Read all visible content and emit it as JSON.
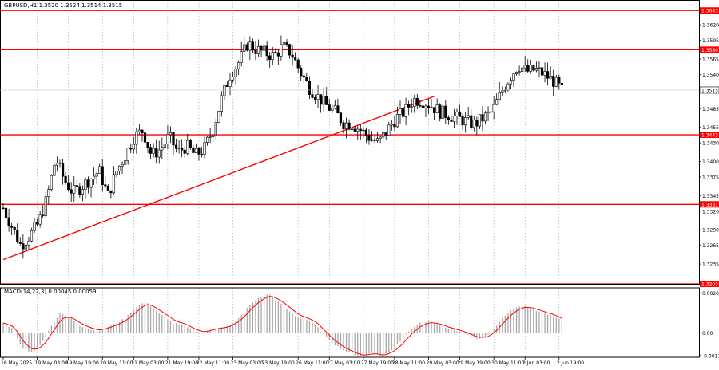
{
  "header": {
    "symbol_text": "GBPUSD,H1  1.3520 1.3524 1.3514 1.3515",
    "macd_text": "MACD(14,22,3) 0.00045 0.00059"
  },
  "colors": {
    "background": "#ffffff",
    "candle": "#000000",
    "level_line": "#ff0000",
    "trend_line": "#ff0000",
    "grid": "#9aa0a6",
    "macd_hist": "#a8a8a8",
    "macd_signal": "#ff0000",
    "current_price_bg": "#ffffff"
  },
  "chart_data": [
    {
      "type": "candlestick",
      "symbol": "GBPUSD",
      "timeframe": "H1",
      "ylim": [
        1.3203,
        1.366
      ],
      "y_ticks": [
        "1.3620",
        "1.3595",
        "1.3565",
        "1.3540",
        "1.3485",
        "1.3455",
        "1.3430",
        "1.3400",
        "1.3375",
        "1.3345",
        "1.3320",
        "1.3290",
        "1.3265",
        "1.3235"
      ],
      "x_tick_labels": [
        "16 May 2025",
        "19 May 03:00",
        "19 May 19:00",
        "20 May 11:00",
        "21 May 03:00",
        "21 May 19:00",
        "22 May 11:00",
        "23 May 03:00",
        "23 May 19:00",
        "26 May 11:00",
        "27 May 03:00",
        "27 May 19:00",
        "28 May 11:00",
        "29 May 03:00",
        "29 May 19:00",
        "30 May 11:00",
        "2 Jun 03:00",
        "2 Jun 19:00"
      ],
      "grid": "dotted vertical and horizontal",
      "current_price": "1.3515",
      "price_path": [
        1.3325,
        1.3295,
        1.3265,
        1.328,
        1.33,
        1.334,
        1.3405,
        1.337,
        1.335,
        1.336,
        1.3372,
        1.3385,
        1.3345,
        1.3385,
        1.341,
        1.344,
        1.345,
        1.341,
        1.342,
        1.344,
        1.3415,
        1.3425,
        1.341,
        1.342,
        1.345,
        1.35,
        1.354,
        1.356,
        1.359,
        1.358,
        1.3575,
        1.357,
        1.3585,
        1.3575,
        1.3545,
        1.352,
        1.3505,
        1.349,
        1.348,
        1.3462,
        1.346,
        1.345,
        1.3438,
        1.343,
        1.345,
        1.347,
        1.348,
        1.35,
        1.3498,
        1.349,
        1.348,
        1.3475,
        1.347,
        1.3465,
        1.346,
        1.347,
        1.348,
        1.351,
        1.3535,
        1.3555,
        1.3545,
        1.3548,
        1.354,
        1.353,
        1.3515
      ],
      "levels": [
        {
          "price": 1.3643,
          "label": "1.3643"
        },
        {
          "price": 1.358,
          "label": "1.3580"
        },
        {
          "price": 1.3443,
          "label": "1.3443"
        },
        {
          "price": 1.3331,
          "label": "1.3331"
        },
        {
          "price": 1.3203,
          "label": "1.3203"
        }
      ],
      "trendline": {
        "start": {
          "bar": 0,
          "price": 1.3242
        },
        "end": {
          "bar": 152,
          "price": 1.3505
        }
      }
    },
    {
      "type": "macd_histogram",
      "name": "MACD(14,22,3)",
      "ylim": [
        -0.00125,
        0.0023
      ],
      "y_ticks": [
        "0.00204",
        "0.00",
        "-0.00116"
      ],
      "macd_path": [
        0.0005,
        0.0002,
        -0.0008,
        -0.001,
        -0.0006,
        0.0003,
        0.001,
        0.0008,
        0.0004,
        0.0002,
        0.0001,
        0.0003,
        0.0005,
        0.0008,
        0.0013,
        0.0016,
        0.0012,
        0.0008,
        0.0005,
        0.0004,
        0.0001,
        0.0,
        0.0002,
        0.0003,
        0.0004,
        0.0008,
        0.0014,
        0.0018,
        0.002,
        0.0016,
        0.0012,
        0.0008,
        0.0007,
        0.0004,
        -0.0002,
        -0.0006,
        -0.0009,
        -0.0011,
        -0.0012,
        -0.001,
        -0.0012,
        -0.0009,
        -0.0004,
        0.0002,
        0.0005,
        0.0006,
        0.0004,
        0.0002,
        0.0001,
        -0.0001,
        -0.0003,
        -0.0002,
        0.0003,
        0.0009,
        0.0013,
        0.0014,
        0.0012,
        0.001,
        0.0009,
        0.0006
      ]
    }
  ]
}
